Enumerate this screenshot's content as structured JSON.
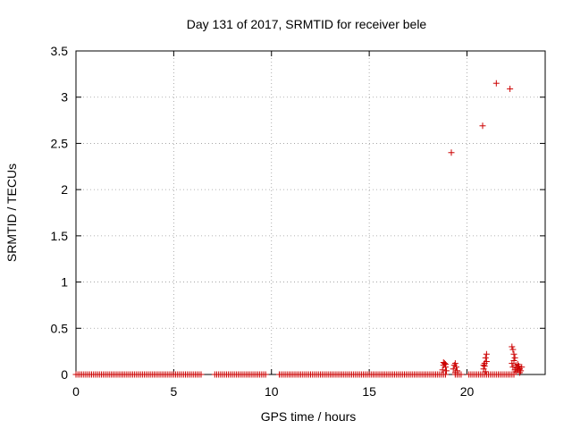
{
  "chart_data": {
    "type": "scatter",
    "title": "Day 131 of 2017, SRMTID for receiver bele",
    "xlabel": "GPS time / hours",
    "ylabel": "SRMTID / TECUs",
    "xlim": [
      0,
      24
    ],
    "ylim": [
      0,
      3.5
    ],
    "xticks": [
      0,
      5,
      10,
      15,
      20
    ],
    "xtick_labels": [
      "0",
      "5",
      "10",
      "15",
      "20"
    ],
    "yticks": [
      0,
      0.5,
      1,
      1.5,
      2,
      2.5,
      3,
      3.5
    ],
    "ytick_labels": [
      "0",
      "0.5",
      "1",
      "1.5",
      "2",
      "2.5",
      "3",
      "3.5"
    ],
    "grid": true,
    "marker": "plus",
    "color": "#cc0000",
    "baseline": {
      "y": 0.0,
      "x_start": 0.0,
      "x_end": 22.4,
      "step": 0.1,
      "gaps": [
        [
          6.45,
          7.05
        ],
        [
          9.7,
          10.3
        ],
        [
          18.9,
          19.4
        ],
        [
          19.8,
          20.1
        ]
      ]
    },
    "series": [
      {
        "name": "SRMTID",
        "x": [
          19.2,
          20.8,
          21.5,
          22.2,
          18.75,
          18.8,
          18.85,
          18.9,
          18.95,
          18.8,
          18.9,
          19.3,
          19.35,
          19.4,
          19.45,
          19.5,
          19.4,
          20.85,
          20.9,
          20.95,
          21.0,
          20.9,
          21.0,
          20.95,
          20.85,
          22.3,
          22.35,
          22.4,
          22.45,
          22.3,
          22.4,
          22.35,
          22.5,
          22.55,
          22.6,
          22.65,
          22.7,
          22.75,
          22.8,
          22.5,
          22.6,
          22.7,
          22.45
        ],
        "y": [
          2.4,
          2.69,
          3.15,
          3.09,
          0.05,
          0.1,
          0.12,
          0.08,
          0.04,
          0.13,
          0.11,
          0.06,
          0.1,
          0.12,
          0.08,
          0.04,
          0.02,
          0.06,
          0.12,
          0.18,
          0.22,
          0.09,
          0.14,
          0.03,
          0.1,
          0.3,
          0.27,
          0.22,
          0.18,
          0.12,
          0.15,
          0.08,
          0.1,
          0.07,
          0.05,
          0.09,
          0.06,
          0.04,
          0.08,
          0.03,
          0.11,
          0.02,
          0.05
        ]
      }
    ]
  }
}
